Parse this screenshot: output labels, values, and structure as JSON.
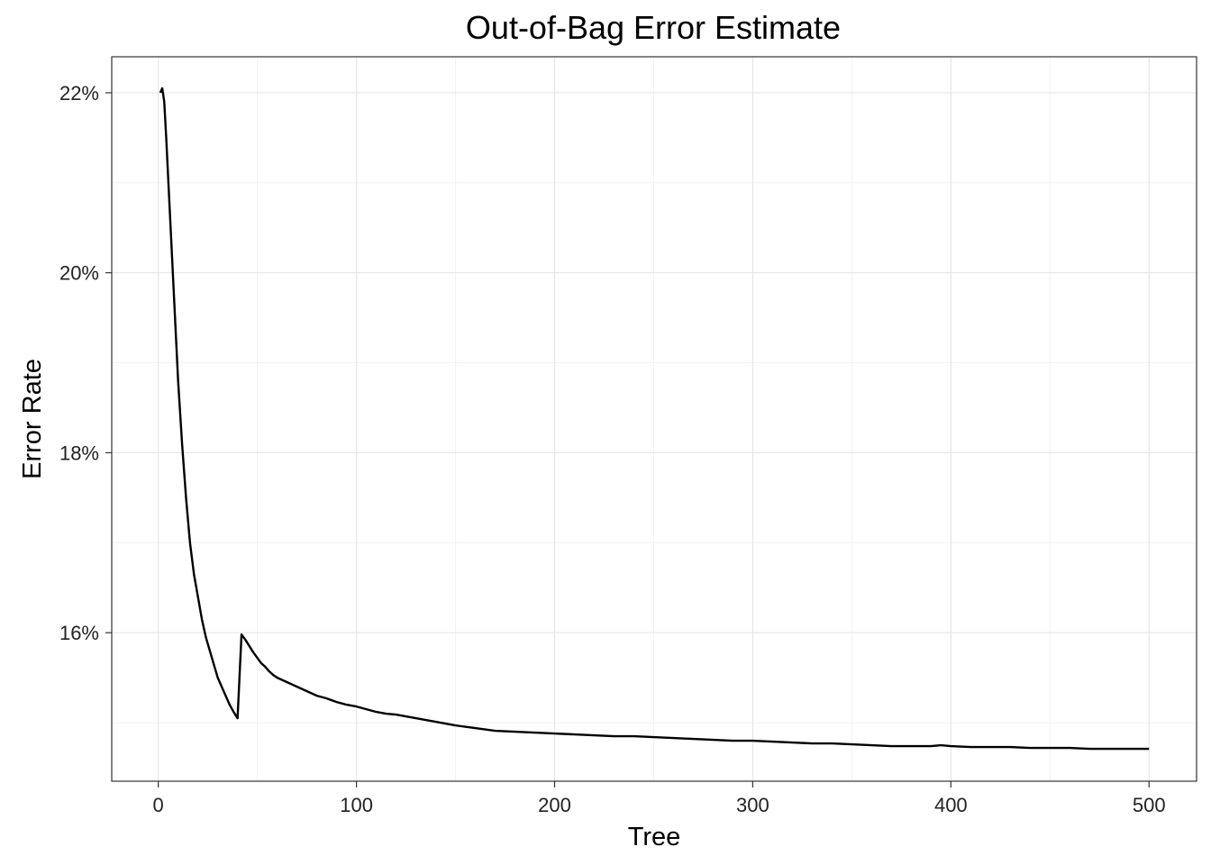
{
  "chart_data": {
    "type": "line",
    "title": "Out-of-Bag Error Estimate",
    "xlabel": "Tree",
    "ylabel": "Error Rate",
    "xlim": [
      -23.5,
      524
    ],
    "ylim": [
      0.1435,
      0.224
    ],
    "x_ticks": [
      0,
      100,
      200,
      300,
      400,
      500
    ],
    "x_tick_labels": [
      "0",
      "100",
      "200",
      "300",
      "400",
      "500"
    ],
    "y_ticks": [
      0.16,
      0.18,
      0.2,
      0.22
    ],
    "y_tick_labels": [
      "16%",
      "18%",
      "20%",
      "22%"
    ],
    "x_minor_ticks": [
      50,
      150,
      250,
      350,
      450
    ],
    "y_minor_ticks": [
      0.15,
      0.17,
      0.19,
      0.21
    ],
    "grid": true,
    "legend": "none",
    "series": [
      {
        "color": "#000000",
        "x": [
          1,
          2,
          3,
          4,
          6,
          8,
          10,
          12,
          14,
          16,
          18,
          20,
          22,
          24,
          26,
          28,
          30,
          32,
          34,
          36,
          38,
          40,
          42,
          44,
          46,
          48,
          50,
          52,
          54,
          56,
          58,
          60,
          65,
          70,
          75,
          80,
          85,
          90,
          95,
          100,
          105,
          110,
          115,
          120,
          125,
          130,
          135,
          140,
          145,
          150,
          160,
          170,
          180,
          190,
          200,
          210,
          220,
          230,
          240,
          250,
          260,
          270,
          280,
          290,
          300,
          310,
          320,
          330,
          340,
          350,
          360,
          370,
          380,
          390,
          395,
          400,
          410,
          420,
          430,
          440,
          450,
          460,
          470,
          480,
          490,
          500
        ],
        "y": [
          0.22,
          0.2205,
          0.219,
          0.215,
          0.206,
          0.197,
          0.188,
          0.181,
          0.175,
          0.17,
          0.1665,
          0.164,
          0.1615,
          0.1595,
          0.158,
          0.1565,
          0.155,
          0.154,
          0.153,
          0.152,
          0.1512,
          0.1505,
          0.1598,
          0.1592,
          0.1585,
          0.1578,
          0.1572,
          0.1566,
          0.1562,
          0.1557,
          0.1553,
          0.155,
          0.1545,
          0.154,
          0.1535,
          0.153,
          0.1527,
          0.1523,
          0.152,
          0.1518,
          0.1515,
          0.1512,
          0.151,
          0.1509,
          0.1507,
          0.1505,
          0.1503,
          0.1501,
          0.1499,
          0.1497,
          0.1494,
          0.1491,
          0.149,
          0.1489,
          0.1488,
          0.1487,
          0.1486,
          0.1485,
          0.1485,
          0.1484,
          0.1483,
          0.1482,
          0.1481,
          0.148,
          0.148,
          0.1479,
          0.1478,
          0.1477,
          0.1477,
          0.1476,
          0.1475,
          0.1474,
          0.1474,
          0.1474,
          0.1475,
          0.1474,
          0.1473,
          0.1473,
          0.1473,
          0.1472,
          0.1472,
          0.1472,
          0.1471,
          0.1471,
          0.1471,
          0.1471
        ]
      }
    ]
  }
}
